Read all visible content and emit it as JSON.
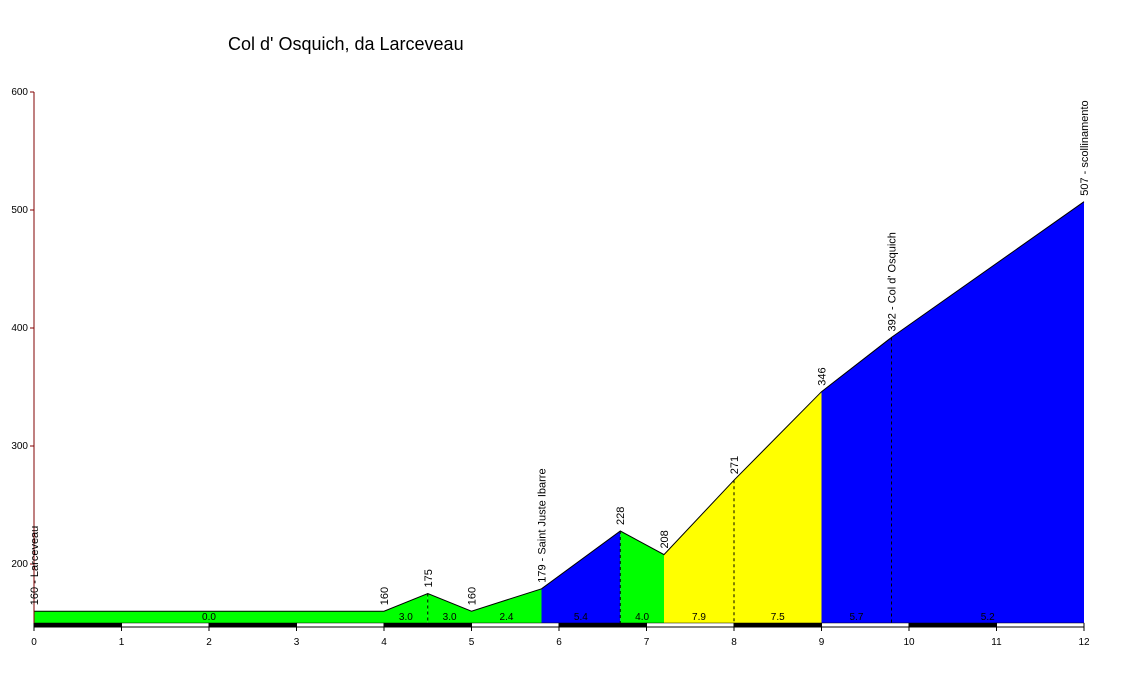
{
  "chart_data": {
    "type": "area",
    "title": "Col d' Osquich, da Larceveau",
    "xlabel": "",
    "ylabel": "",
    "xlim": [
      0,
      12
    ],
    "ylim": [
      150,
      600
    ],
    "x_ticks": [
      0,
      1,
      2,
      3,
      4,
      5,
      6,
      7,
      8,
      9,
      10,
      11,
      12
    ],
    "y_ticks": [
      200,
      300,
      400,
      500,
      600
    ],
    "grid": false,
    "colors": {
      "green": "#00ff00",
      "blue": "#0000ff",
      "yellow": "#ffff00",
      "axis": "#800000",
      "bar_dark": "#000000",
      "bar_light": "#ffffff"
    },
    "profile": [
      {
        "x": 0.0,
        "y": 160
      },
      {
        "x": 4.0,
        "y": 160
      },
      {
        "x": 4.5,
        "y": 175
      },
      {
        "x": 5.0,
        "y": 160
      },
      {
        "x": 5.8,
        "y": 179
      },
      {
        "x": 6.7,
        "y": 228
      },
      {
        "x": 7.2,
        "y": 208
      },
      {
        "x": 8.0,
        "y": 271
      },
      {
        "x": 9.0,
        "y": 346
      },
      {
        "x": 9.8,
        "y": 392
      },
      {
        "x": 12.0,
        "y": 507
      }
    ],
    "segments": [
      {
        "from": 0.0,
        "to": 4.0,
        "gradient": "0.0",
        "color": "green"
      },
      {
        "from": 4.0,
        "to": 4.5,
        "gradient": "3.0",
        "color": "green"
      },
      {
        "from": 4.5,
        "to": 5.0,
        "gradient": "3.0",
        "color": "green"
      },
      {
        "from": 5.0,
        "to": 5.8,
        "gradient": "2.4",
        "color": "green"
      },
      {
        "from": 5.8,
        "to": 6.7,
        "gradient": "5.4",
        "color": "blue"
      },
      {
        "from": 6.7,
        "to": 7.2,
        "gradient": "4.0",
        "color": "green"
      },
      {
        "from": 7.2,
        "to": 8.0,
        "gradient": "7.9",
        "color": "yellow"
      },
      {
        "from": 8.0,
        "to": 9.0,
        "gradient": "7.5",
        "color": "yellow"
      },
      {
        "from": 9.0,
        "to": 9.8,
        "gradient": "5.7",
        "color": "blue"
      },
      {
        "from": 9.8,
        "to": 12.0,
        "gradient": "5.2",
        "color": "blue"
      }
    ],
    "annotations": [
      {
        "x": 0.0,
        "y": 160,
        "label": "160 - Larceveau"
      },
      {
        "x": 4.0,
        "y": 160,
        "label": "160"
      },
      {
        "x": 4.5,
        "y": 175,
        "label": "175"
      },
      {
        "x": 5.0,
        "y": 160,
        "label": "160"
      },
      {
        "x": 5.8,
        "y": 179,
        "label": "179 - Saint Juste Ibarre"
      },
      {
        "x": 6.7,
        "y": 228,
        "label": "228"
      },
      {
        "x": 7.2,
        "y": 208,
        "label": "208"
      },
      {
        "x": 8.0,
        "y": 271,
        "label": "271"
      },
      {
        "x": 9.0,
        "y": 346,
        "label": "346"
      },
      {
        "x": 9.8,
        "y": 392,
        "label": "392 - Col d' Osquich"
      },
      {
        "x": 12.0,
        "y": 507,
        "label": "507 - scollinamento"
      }
    ],
    "dashed_markers": [
      4.5,
      6.7,
      8.0,
      9.8
    ]
  }
}
